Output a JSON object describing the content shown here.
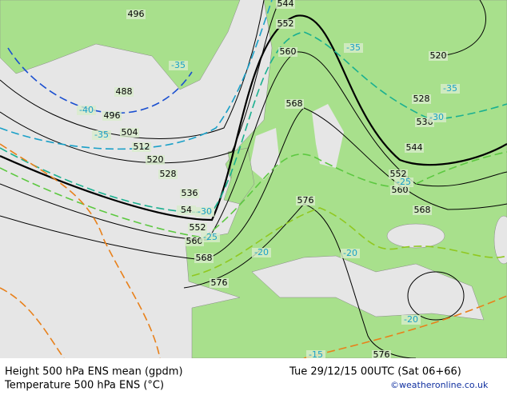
{
  "map": {
    "height_labels": [
      "496",
      "544",
      "552",
      "560",
      "520",
      "488",
      "496",
      "504",
      "512",
      "520",
      "528",
      "536",
      "54",
      "552",
      "560",
      "568",
      "576",
      "568",
      "576",
      "568",
      "560",
      "552",
      "544",
      "536",
      "528",
      "576"
    ],
    "temperature_labels": [
      "-35",
      "-40",
      "-35",
      "-30",
      "-25",
      "-20",
      "-35",
      "-35",
      "-30",
      "-25",
      "-20",
      "-15",
      "-20"
    ]
  },
  "footer": {
    "line1_left": "Height 500 hPa ENS mean (gpdm)",
    "line1_right": "Tue 29/12/15 00UTC (Sat 06+66)",
    "line2_left": "Temperature 500 hPa ENS (°C)",
    "line2_right": "©weatheronline.co.uk"
  }
}
